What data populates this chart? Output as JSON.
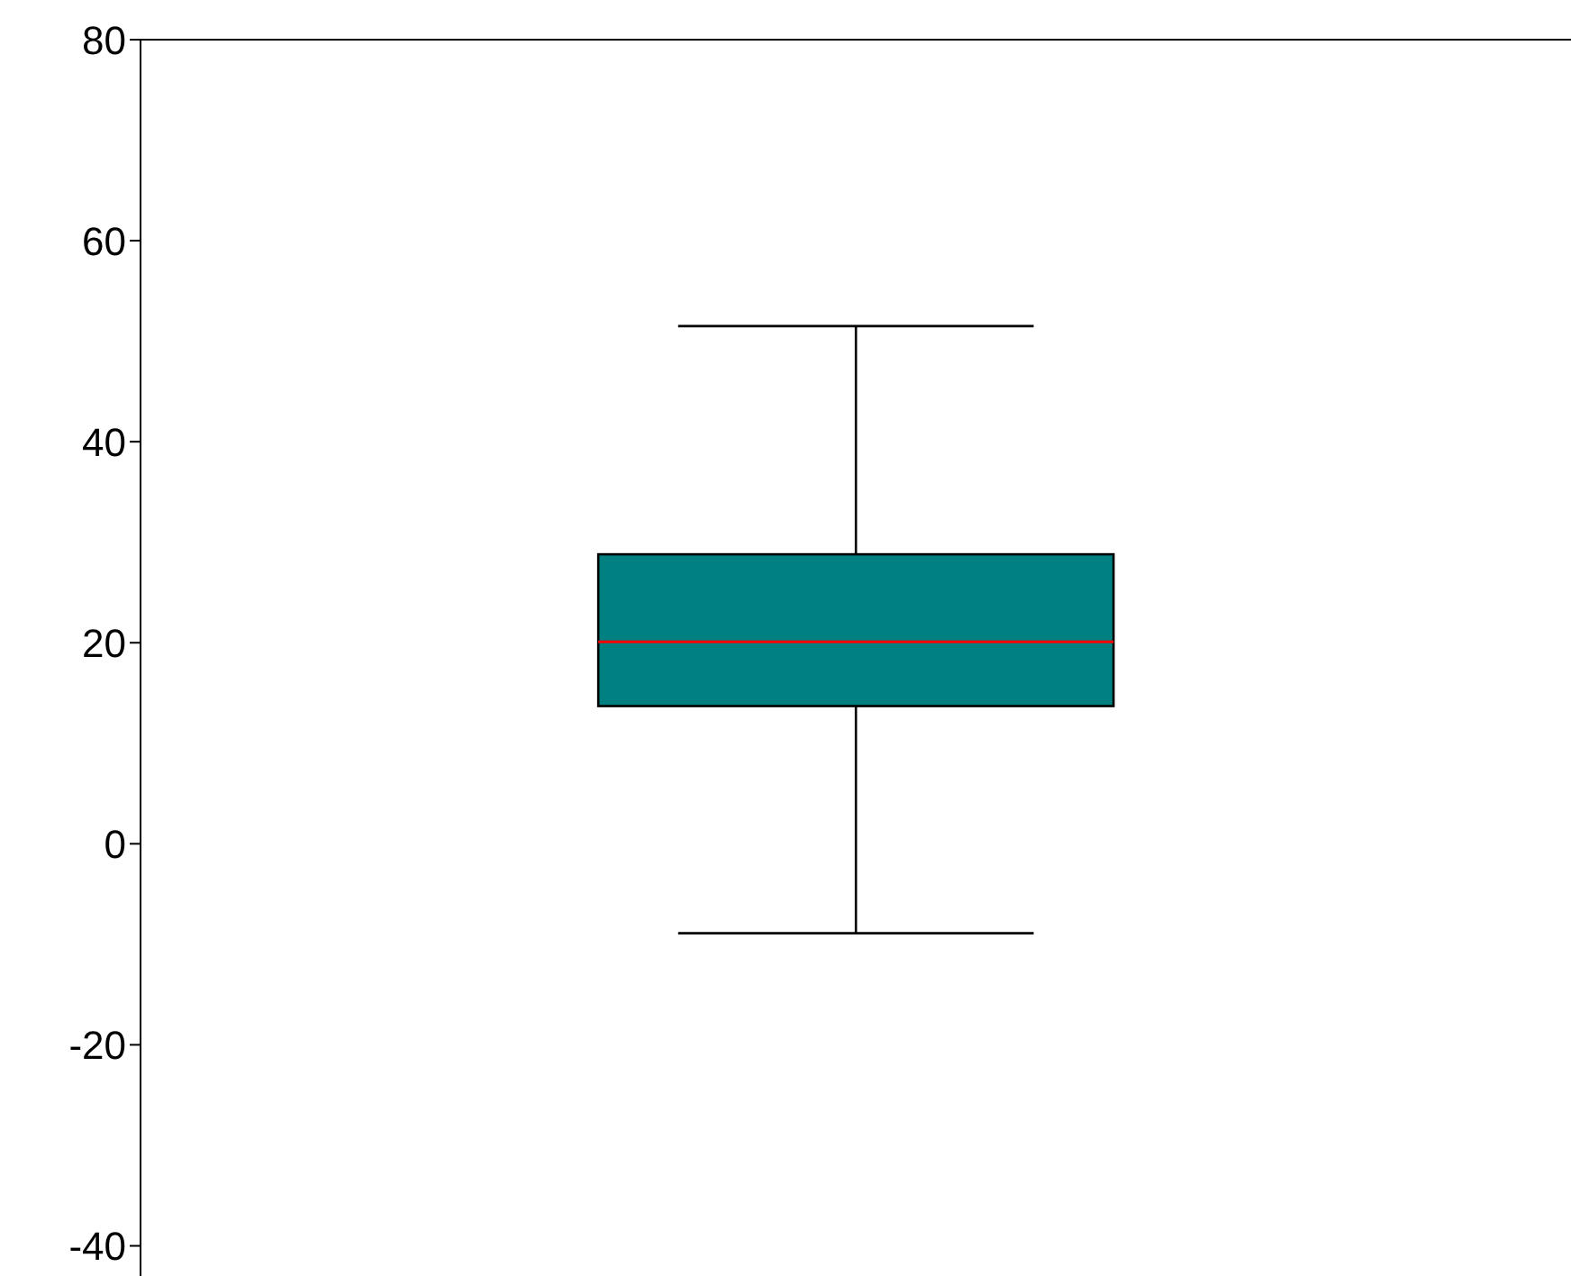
{
  "chart_data": {
    "type": "box",
    "categories": [
      null
    ],
    "color": "#008080",
    "boxes": [
      {
        "low": -8.9,
        "q1": 13.7,
        "median": 20.1,
        "q3": 28.8,
        "high": 51.5
      }
    ],
    "ylim": [
      -43,
      80
    ],
    "yticks": [
      -40,
      -20,
      0,
      20,
      40,
      60,
      80
    ],
    "tick_labels": "y"
  }
}
